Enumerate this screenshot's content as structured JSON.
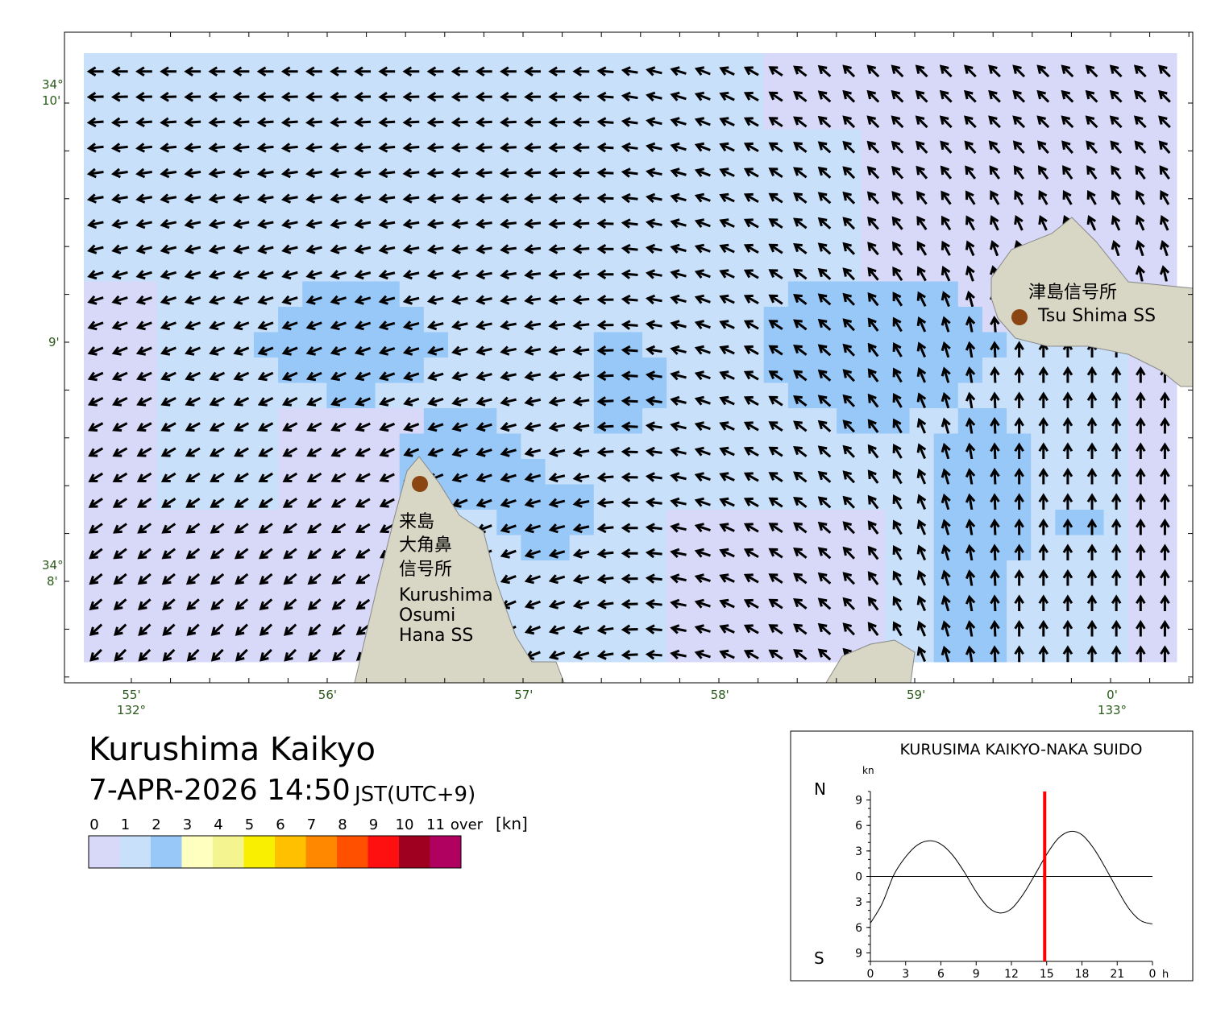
{
  "header": {
    "title": "Kurushima Kaikyo",
    "datetime": "7-APR-2026 14:50",
    "timezone": "JST(UTC+9)"
  },
  "map": {
    "lon_labels": [
      {
        "minute": "55'",
        "degree": "132°"
      },
      {
        "minute": "56'"
      },
      {
        "minute": "57'"
      },
      {
        "minute": "58'"
      },
      {
        "minute": "59'"
      },
      {
        "minute": "0'",
        "degree": "133°"
      }
    ],
    "lat_labels": [
      {
        "degree": "34°",
        "minute": "10'"
      },
      {
        "minute": "9'"
      },
      {
        "degree": "34°",
        "minute": "8'"
      }
    ],
    "places": [
      {
        "lines": [
          "津島信号所",
          "Tsu Shima SS"
        ]
      },
      {
        "lines": [
          "来島",
          "大角鼻",
          "信号所",
          "Kurushima",
          "Osumi",
          "Hana SS"
        ]
      }
    ]
  },
  "legend": {
    "labels": [
      "0",
      "1",
      "2",
      "3",
      "4",
      "5",
      "6",
      "7",
      "8",
      "9",
      "10",
      "11",
      "over"
    ],
    "unit": "[kn]",
    "colors": [
      "#d8d8f8",
      "#c8e0fa",
      "#98c8f8",
      "#ffffc0",
      "#f4f490",
      "#f8f000",
      "#ffc000",
      "#ff8800",
      "#ff5000",
      "#ff1010",
      "#a00020",
      "#b00060"
    ]
  },
  "tide_chart": {
    "type": "line",
    "title": "KURUSIMA KAIKYO-NAKA SUIDO",
    "y_unit": "kn",
    "x_unit": "h",
    "north": "N",
    "south": "S",
    "x": [
      0,
      1,
      2,
      3,
      4,
      5,
      6,
      7,
      8,
      9,
      10,
      11,
      12,
      13,
      14,
      15,
      16,
      17,
      18,
      19,
      20,
      21,
      22,
      23,
      24
    ],
    "values": [
      -5.5,
      -3.2,
      0.2,
      2.3,
      3.7,
      4.2,
      3.8,
      2.5,
      0.5,
      -1.8,
      -3.6,
      -4.3,
      -3.8,
      -2.1,
      0.2,
      2.6,
      4.5,
      5.3,
      4.9,
      3.3,
      1.0,
      -1.5,
      -3.8,
      -5.2,
      -5.6
    ],
    "xlim": [
      0,
      24
    ],
    "ylim": [
      -10,
      10
    ],
    "xticks": [
      0,
      3,
      6,
      9,
      12,
      15,
      18,
      21,
      {
        "value": 24,
        "label": "0"
      }
    ],
    "yticks": [
      9,
      6,
      3,
      0,
      {
        "value": -3,
        "label": "3"
      },
      {
        "value": -6,
        "label": "6"
      },
      {
        "value": -9,
        "label": "9"
      }
    ],
    "now": 14.83,
    "now_color": "#ff0000"
  }
}
